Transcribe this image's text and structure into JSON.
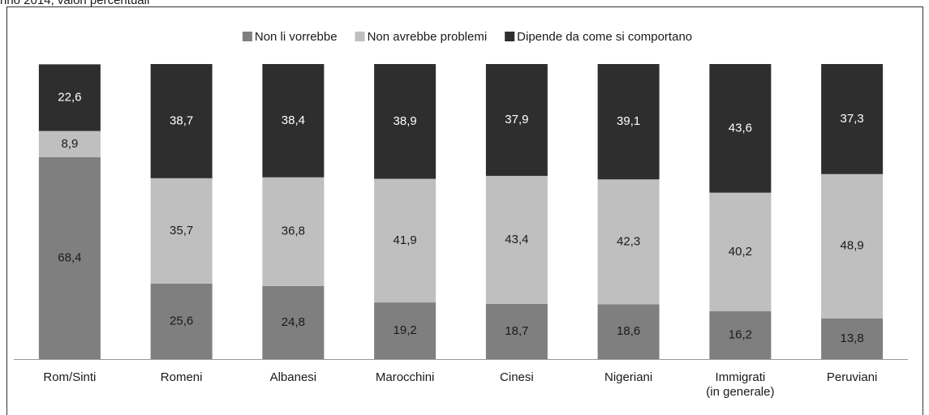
{
  "chart_data": {
    "type": "stacked_bar",
    "subtitle": "nno 2014, valori percentuali",
    "categories": [
      "Rom/Sinti",
      "Romeni",
      "Albanesi",
      "Marocchini",
      "Cinesi",
      "Nigeriani",
      "Immigrati\n(in generale)",
      "Peruviani"
    ],
    "series": [
      {
        "name": "Non li vorrebbe",
        "color": "#7f7f7f",
        "values": [
          68.4,
          25.6,
          24.8,
          19.2,
          18.7,
          18.6,
          16.2,
          13.8
        ],
        "value_labels": [
          "68,4",
          "25,6",
          "24,8",
          "19,2",
          "18,7",
          "18,6",
          "16,2",
          "13,8"
        ]
      },
      {
        "name": "Non avrebbe problemi",
        "color": "#bfbfbf",
        "values": [
          8.9,
          35.7,
          36.8,
          41.9,
          43.4,
          42.3,
          40.2,
          48.9
        ],
        "value_labels": [
          "8,9",
          "35,7",
          "36,8",
          "41,9",
          "43,4",
          "42,3",
          "40,2",
          "48,9"
        ]
      },
      {
        "name": "Dipende da come si comportano",
        "color": "#2e2e2e",
        "values": [
          22.6,
          38.7,
          38.4,
          38.9,
          37.9,
          39.1,
          43.6,
          37.3
        ],
        "value_labels": [
          "22,6",
          "38,7",
          "38,4",
          "38,9",
          "37,9",
          "39,1",
          "43,6",
          "37,3"
        ]
      }
    ],
    "ylim": [
      0,
      100
    ],
    "legend": "top"
  }
}
